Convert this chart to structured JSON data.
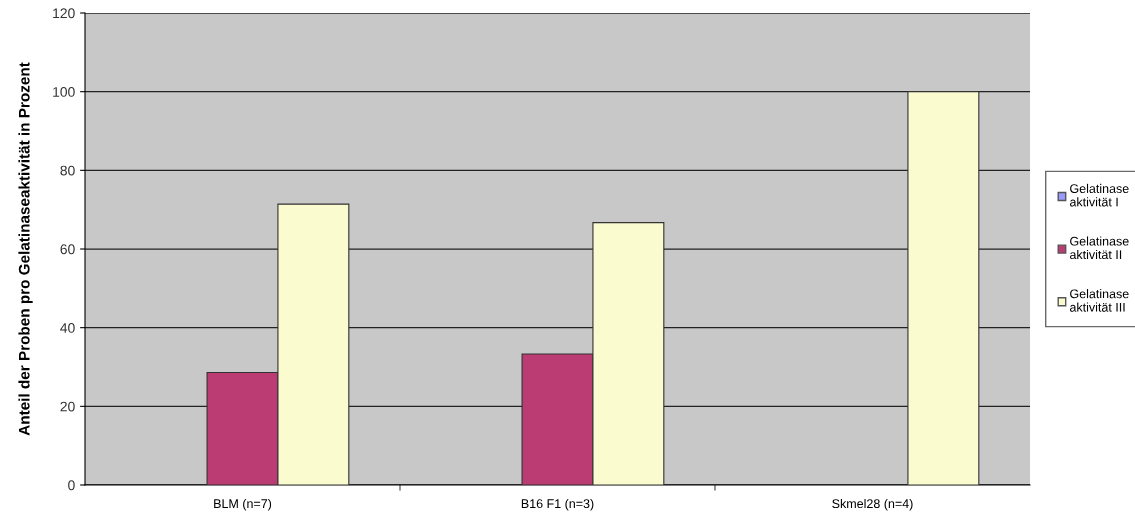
{
  "chart_data": {
    "type": "bar",
    "ylabel": "Anteil der Proben pro Gelatinaseaktivität in Prozent",
    "categories": [
      "BLM (n=7)",
      "B16 F1 (n=3)",
      "Skmel28 (n=4)"
    ],
    "series": [
      {
        "name": "Gelatinase\naktivität I",
        "color": "#9999ff",
        "values": [
          0,
          0,
          0
        ]
      },
      {
        "name": "Gelatinase\naktivität II",
        "color": "#bb3b73",
        "values": [
          28.6,
          33.3,
          0
        ]
      },
      {
        "name": "Gelatinase\naktivität III",
        "color": "#fbfbd0",
        "values": [
          71.4,
          66.7,
          100
        ]
      }
    ],
    "ylim": [
      0,
      120
    ],
    "yticks": [
      0,
      20,
      40,
      60,
      80,
      100,
      120
    ],
    "grid": "y",
    "legend": "right"
  }
}
